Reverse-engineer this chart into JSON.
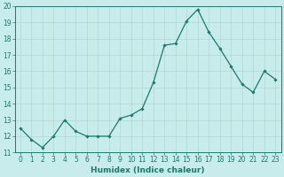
{
  "x": [
    0,
    1,
    2,
    3,
    4,
    5,
    6,
    7,
    8,
    9,
    10,
    11,
    12,
    13,
    14,
    15,
    16,
    17,
    18,
    19,
    20,
    21,
    22,
    23
  ],
  "y": [
    12.5,
    11.8,
    11.3,
    12.0,
    13.0,
    12.3,
    12.0,
    12.0,
    12.0,
    13.1,
    13.3,
    13.7,
    15.3,
    17.6,
    17.7,
    19.1,
    19.8,
    18.4,
    17.4,
    16.3,
    15.2,
    14.7,
    16.0,
    15.5
  ],
  "line_color": "#1a7a6e",
  "marker": "D",
  "marker_size": 1.8,
  "bg_color": "#c8ecec",
  "grid_color": "#b0d8d0",
  "xlabel": "Humidex (Indice chaleur)",
  "ylim": [
    11,
    20
  ],
  "xlim_min": -0.5,
  "xlim_max": 23.5,
  "yticks": [
    11,
    12,
    13,
    14,
    15,
    16,
    17,
    18,
    19,
    20
  ],
  "xticks": [
    0,
    1,
    2,
    3,
    4,
    5,
    6,
    7,
    8,
    9,
    10,
    11,
    12,
    13,
    14,
    15,
    16,
    17,
    18,
    19,
    20,
    21,
    22,
    23
  ],
  "tick_color": "#1a7a6e",
  "label_fontsize": 6.5,
  "tick_fontsize": 5.5,
  "linewidth": 0.9
}
